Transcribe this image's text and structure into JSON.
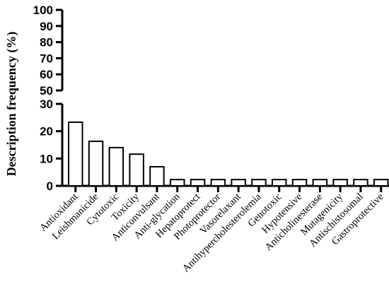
{
  "chart_data": {
    "type": "bar",
    "ylabel": "Description frequency (%)",
    "categories": [
      "Antioxidant",
      "Leishmanicide",
      "Cytotoxic",
      "Toxicity",
      "Anticonvulsant",
      "Anti-glycation",
      "Hepatoprotect",
      "Photoprotector",
      "Vasorelaxant",
      "Antihypercholesterolemia",
      "Genotoxic",
      "Hypotensive",
      "Anticholinesterase",
      "Mutagenicity",
      "Antischistosomal",
      "Gastroprotective"
    ],
    "values": [
      23.3,
      16.3,
      14.0,
      11.6,
      7.0,
      2.3,
      2.3,
      2.3,
      2.3,
      2.3,
      2.3,
      2.3,
      2.3,
      2.3,
      2.3,
      2.3
    ],
    "axis_break": true,
    "lower_segment": {
      "ylim": [
        0,
        30
      ],
      "ticks": [
        "0",
        "10",
        "20",
        "30"
      ]
    },
    "upper_segment": {
      "ylim": [
        50,
        100
      ],
      "ticks": [
        "50",
        "60",
        "70",
        "80",
        "90",
        "100"
      ]
    },
    "grid": false,
    "legend": "none",
    "bar_fill": "#ffffff",
    "bar_stroke": "#000000"
  }
}
